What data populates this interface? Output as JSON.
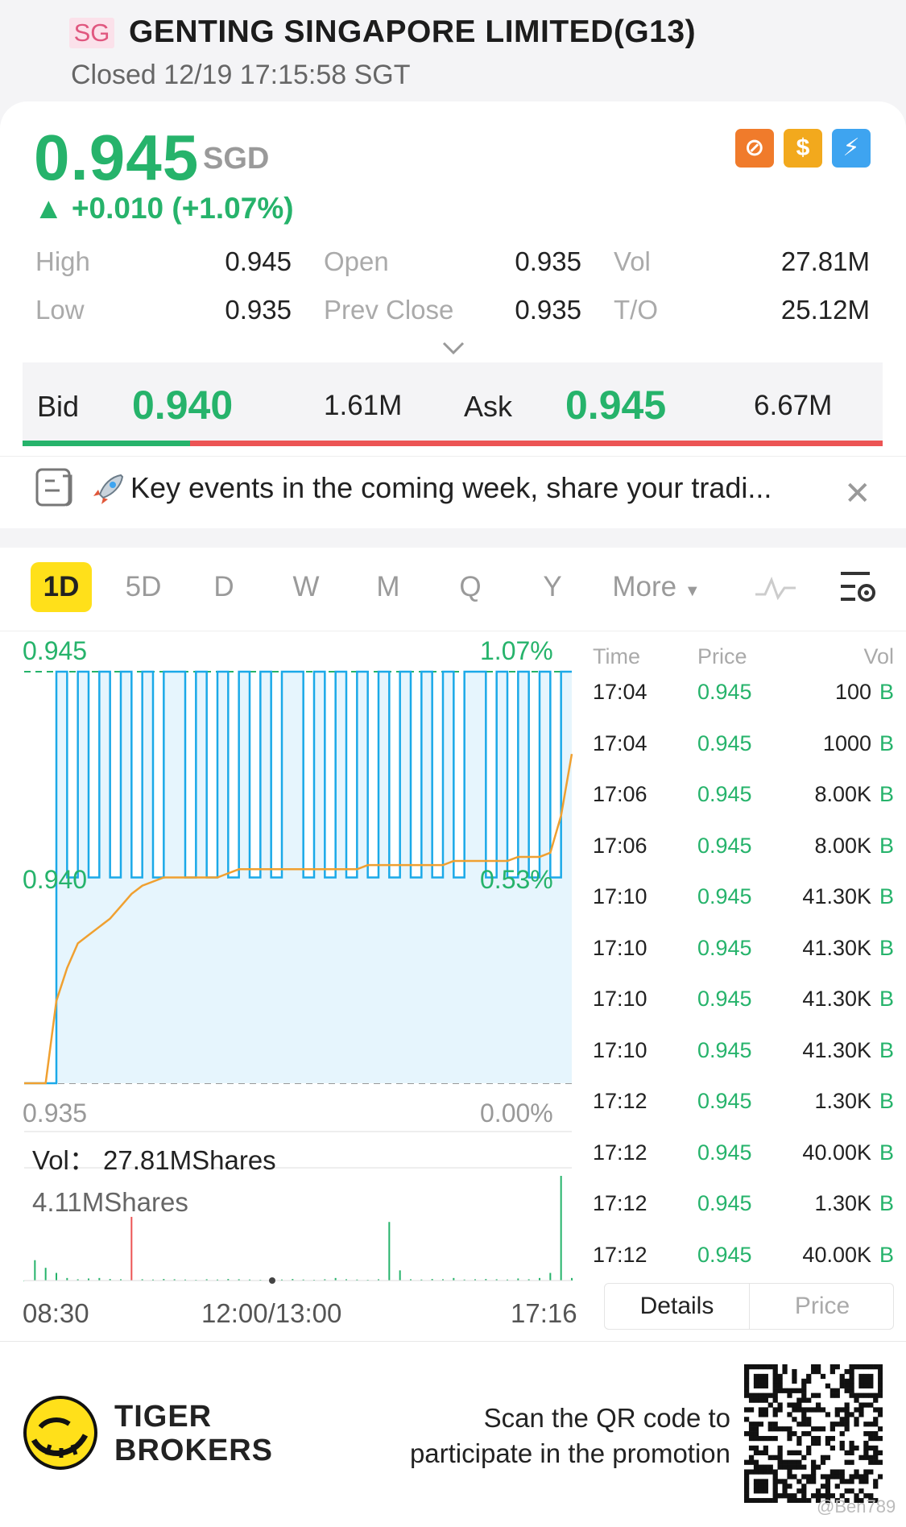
{
  "header": {
    "market_badge": "SG",
    "title": "GENTING SINGAPORE LIMITED(G13)",
    "status": "Closed 12/19 17:15:58 SGT"
  },
  "quote": {
    "price": "0.945",
    "currency": "SGD",
    "change": "▲ +0.010 (+1.07%)",
    "badges": [
      "no-margin-icon",
      "dollar-icon",
      "flash-icon"
    ],
    "badge_glyphs": [
      "⊘",
      "$",
      "⚡"
    ]
  },
  "stats": {
    "high_label": "High",
    "high": "0.945",
    "low_label": "Low",
    "low": "0.935",
    "open_label": "Open",
    "open": "0.935",
    "prev_close_label": "Prev Close",
    "prev_close": "0.935",
    "vol_label": "Vol",
    "vol": "27.81M",
    "to_label": "T/O",
    "to": "25.12M"
  },
  "bid_ask": {
    "bid_label": "Bid",
    "bid_price": "0.940",
    "bid_size": "1.61M",
    "ask_label": "Ask",
    "ask_price": "0.945",
    "ask_size": "6.67M"
  },
  "notice": {
    "text": "Key events in the coming week, share your tradi...",
    "close": "✕"
  },
  "tabs": [
    "1D",
    "5D",
    "D",
    "W",
    "M",
    "Q",
    "Y"
  ],
  "tab_more": "More",
  "chart": {
    "y_top": "0.945",
    "y_mid": "0.940",
    "y_bottom": "0.935",
    "pct_top": "1.07%",
    "pct_mid": "0.53%",
    "pct_bottom": "0.00%",
    "vol_title": "Vol：  27.81MShares",
    "vol_max": "4.11MShares",
    "time_start": "08:30",
    "time_mid": "12:00/13:00",
    "time_end": "17:16"
  },
  "chart_data": {
    "type": "line",
    "series": [
      {
        "values": [
          0.935,
          0.935,
          0.935,
          0.945,
          0.94,
          0.945,
          0.94,
          0.945,
          0.94,
          0.945,
          0.94,
          0.945,
          0.94,
          0.945,
          0.945,
          0.94,
          0.945,
          0.94,
          0.945,
          0.94,
          0.945,
          0.94,
          0.945,
          0.94,
          0.945,
          0.945,
          0.94,
          0.945,
          0.94,
          0.945,
          0.94,
          0.945,
          0.94,
          0.945,
          0.94,
          0.945,
          0.94,
          0.945,
          0.94,
          0.945,
          0.94,
          0.945,
          0.945,
          0.94,
          0.945,
          0.94,
          0.945,
          0.94,
          0.945,
          0.94,
          0.945,
          0.945
        ]
      },
      {
        "values": [
          0.935,
          0.935,
          0.935,
          0.937,
          0.9378,
          0.9384,
          0.9386,
          0.9388,
          0.939,
          0.9393,
          0.9396,
          0.9398,
          0.9399,
          0.94,
          0.94,
          0.94,
          0.94,
          0.94,
          0.94,
          0.9401,
          0.9402,
          0.9402,
          0.9402,
          0.9402,
          0.9402,
          0.9402,
          0.9402,
          0.9402,
          0.9402,
          0.9402,
          0.9402,
          0.9402,
          0.9403,
          0.9403,
          0.9403,
          0.9403,
          0.9403,
          0.9403,
          0.9403,
          0.9403,
          0.9404,
          0.9404,
          0.9404,
          0.9404,
          0.9404,
          0.9404,
          0.9405,
          0.9405,
          0.9405,
          0.9406,
          0.9415,
          0.943
        ]
      }
    ],
    "ylim": [
      0.935,
      0.945
    ],
    "xlabel": "",
    "ylabel": "",
    "grid": false,
    "volume": {
      "ylim": [
        0,
        4.11
      ],
      "values": [
        0.0,
        0.8,
        0.5,
        0.3,
        0.1,
        0.05,
        0.08,
        0.1,
        0.06,
        0.05,
        2.5,
        0.05,
        0.04,
        0.06,
        0.05,
        0.04,
        0.03,
        0.05,
        0.04,
        0.06,
        0.05,
        0.04,
        0.03,
        0.05,
        0.04,
        0.06,
        0.04,
        0.03,
        0.05,
        0.1,
        0.05,
        0.04,
        0.03,
        0.05,
        2.3,
        0.4,
        0.05,
        0.04,
        0.06,
        0.05,
        0.1,
        0.04,
        0.05,
        0.06,
        0.05,
        0.04,
        0.08,
        0.05,
        0.1,
        0.3,
        4.11,
        0.1
      ],
      "colors": [
        "green",
        "green",
        "green",
        "green",
        "green",
        "green",
        "green",
        "green",
        "green",
        "green",
        "red",
        "green",
        "green",
        "green",
        "green",
        "green",
        "green",
        "green",
        "green",
        "green",
        "green",
        "green",
        "green",
        "green",
        "green",
        "green",
        "green",
        "green",
        "green",
        "green",
        "green",
        "green",
        "green",
        "green",
        "green",
        "green",
        "green",
        "green",
        "green",
        "green",
        "green",
        "green",
        "green",
        "green",
        "green",
        "green",
        "green",
        "green",
        "green",
        "green",
        "green",
        "green"
      ]
    }
  },
  "trades": {
    "head_time": "Time",
    "head_price": "Price",
    "head_vol": "Vol",
    "rows": [
      {
        "time": "17:04",
        "price": "0.945",
        "vol": "100",
        "side": "B"
      },
      {
        "time": "17:04",
        "price": "0.945",
        "vol": "1000",
        "side": "B"
      },
      {
        "time": "17:06",
        "price": "0.945",
        "vol": "8.00K",
        "side": "B"
      },
      {
        "time": "17:06",
        "price": "0.945",
        "vol": "8.00K",
        "side": "B"
      },
      {
        "time": "17:10",
        "price": "0.945",
        "vol": "41.30K",
        "side": "B"
      },
      {
        "time": "17:10",
        "price": "0.945",
        "vol": "41.30K",
        "side": "B"
      },
      {
        "time": "17:10",
        "price": "0.945",
        "vol": "41.30K",
        "side": "B"
      },
      {
        "time": "17:10",
        "price": "0.945",
        "vol": "41.30K",
        "side": "B"
      },
      {
        "time": "17:12",
        "price": "0.945",
        "vol": "1.30K",
        "side": "B"
      },
      {
        "time": "17:12",
        "price": "0.945",
        "vol": "40.00K",
        "side": "B"
      },
      {
        "time": "17:12",
        "price": "0.945",
        "vol": "1.30K",
        "side": "B"
      },
      {
        "time": "17:12",
        "price": "0.945",
        "vol": "40.00K",
        "side": "B"
      }
    ]
  },
  "detail_tabs": {
    "details": "Details",
    "price": "Price"
  },
  "footer": {
    "brand_line1": "TIGER",
    "brand_line2": "BROKERS",
    "promo_line1": "Scan the QR code to",
    "promo_line2": "participate in the promotion",
    "watermark": "@Ben789"
  },
  "colors": {
    "green": "#26b36b",
    "red": "#ec5454",
    "blue": "#1ba9e8",
    "orange": "#f0a030",
    "yellow": "#ffe01a"
  }
}
